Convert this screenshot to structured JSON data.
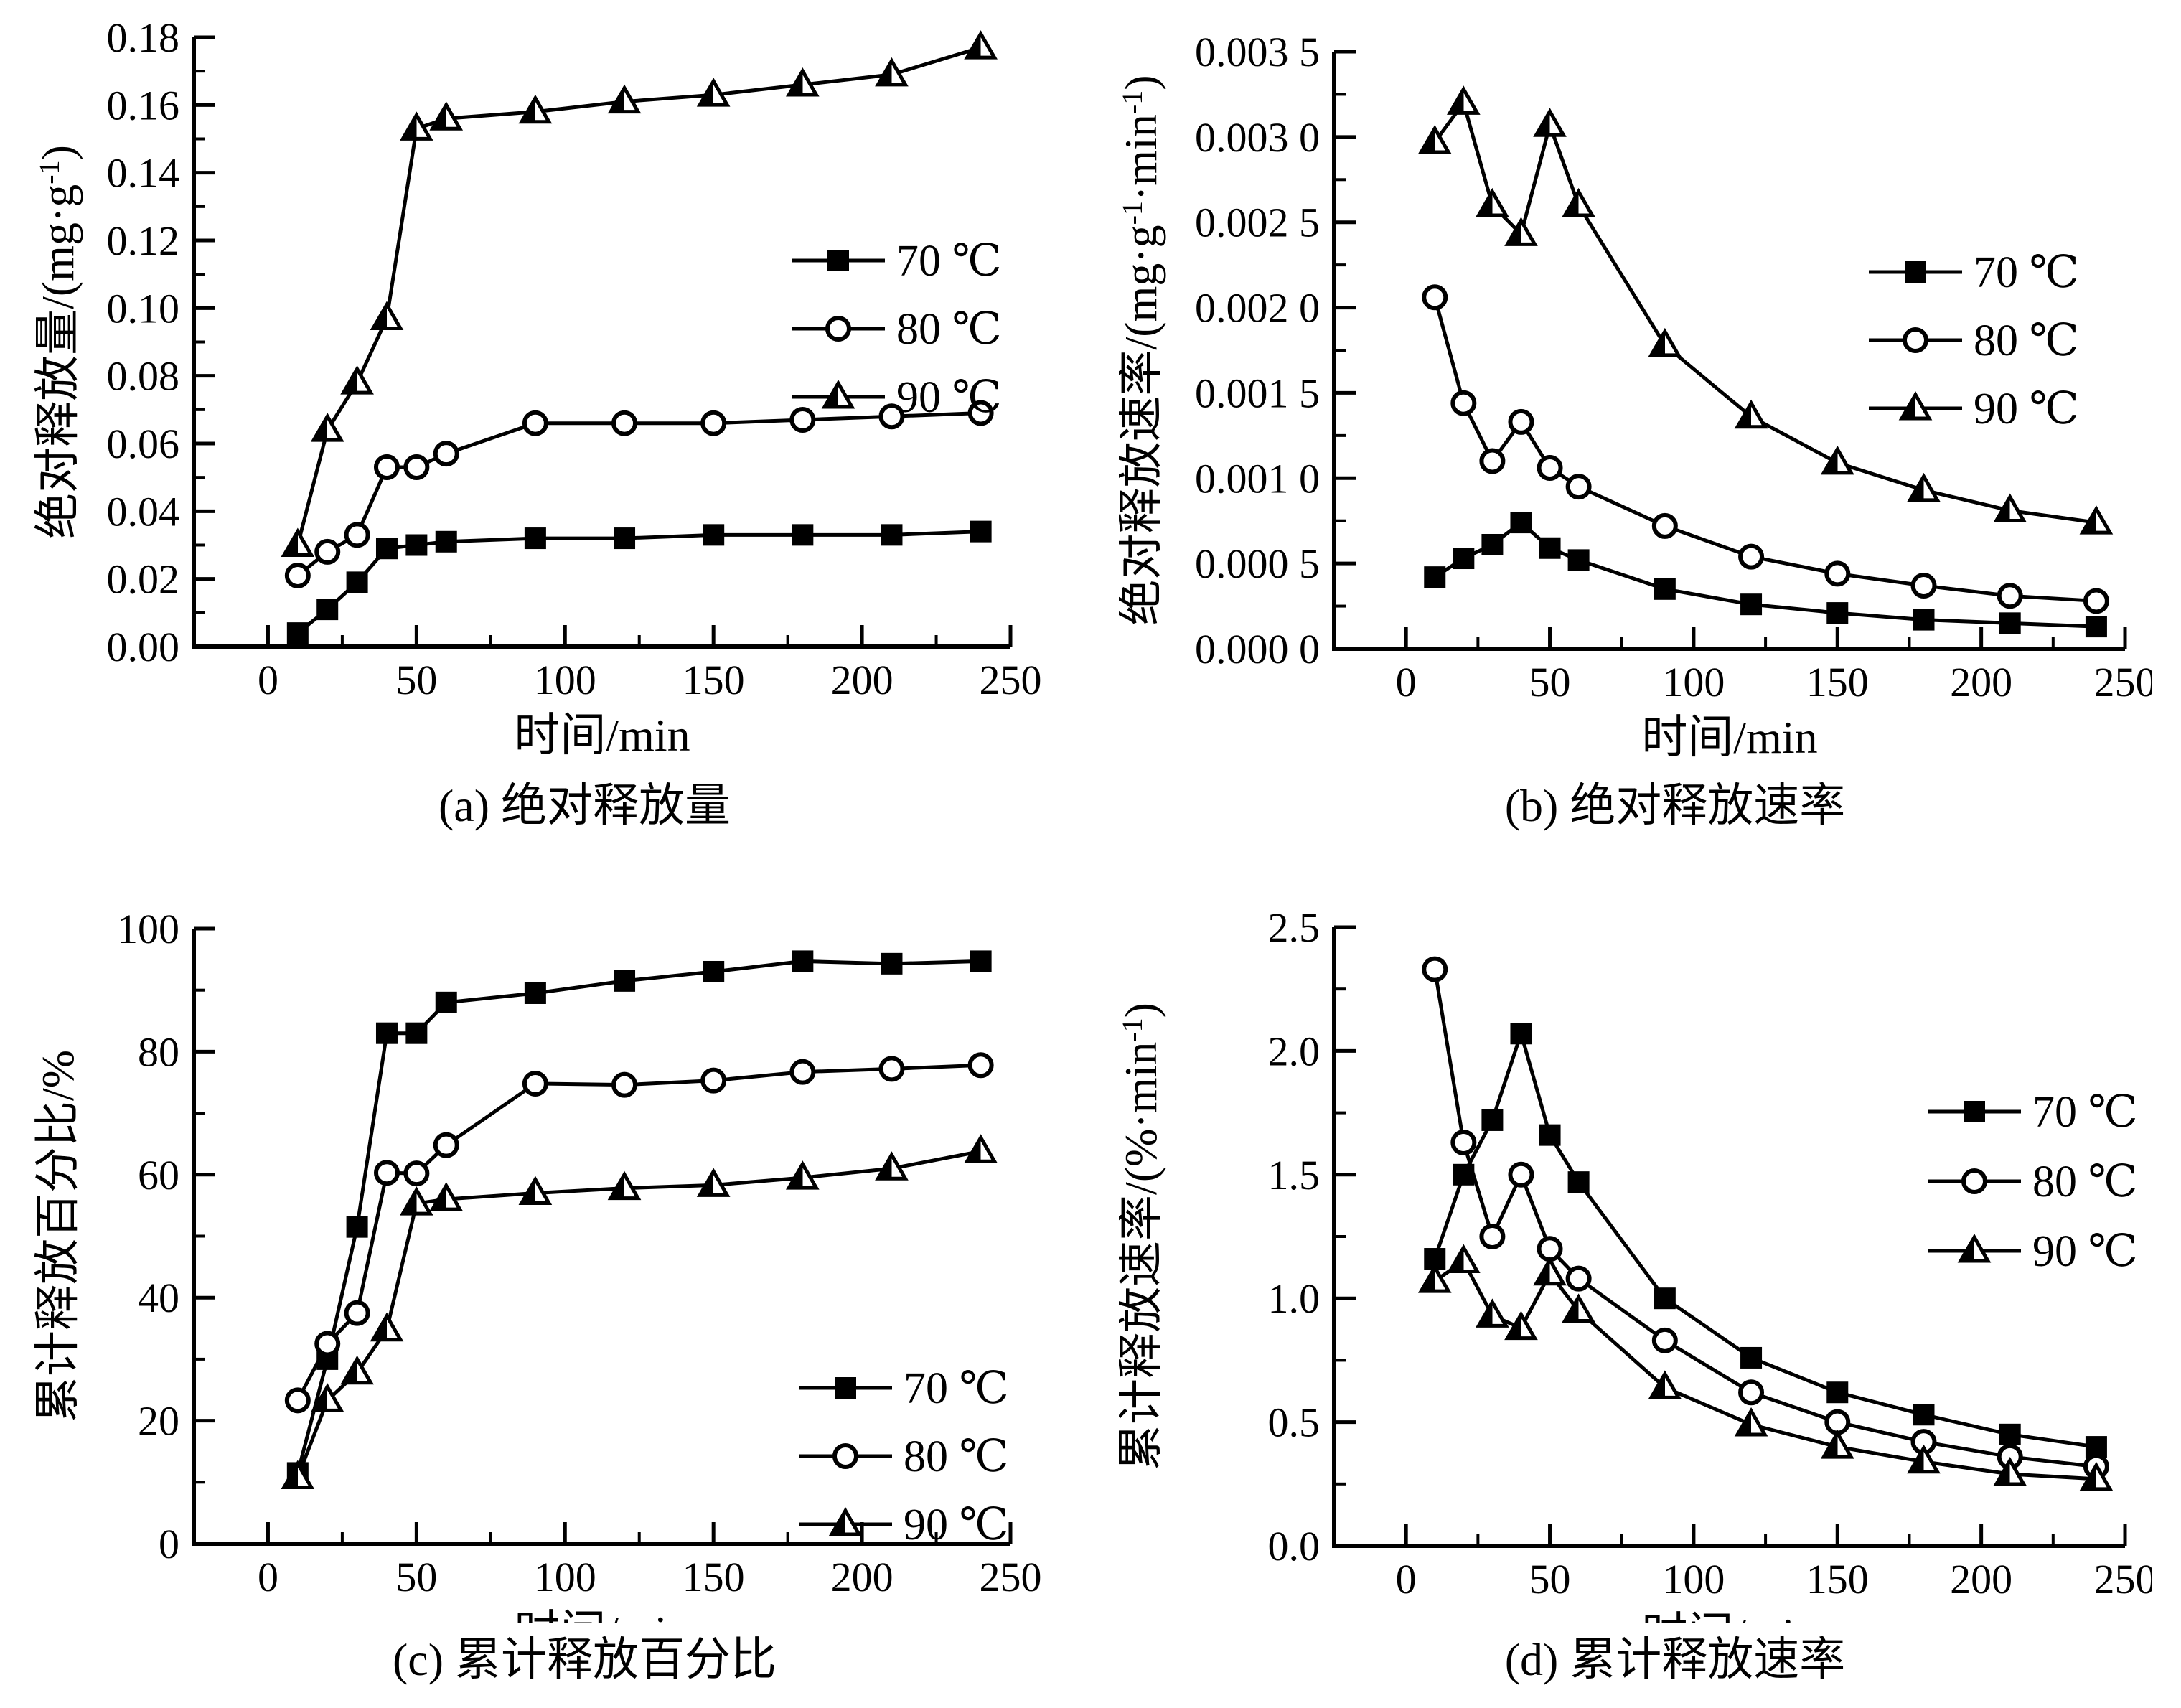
{
  "page": {
    "background": "#ffffff",
    "ink": "#000000"
  },
  "chart_data": [
    {
      "id": "a",
      "type": "line",
      "caption": "(a) 绝对释放量",
      "xlabel": "时间/min",
      "ylabel": "绝对释放量/(mg·g^-1^)",
      "xlim": [
        -25,
        250
      ],
      "ylim": [
        0,
        0.18
      ],
      "x_major_ticks": [
        0,
        50,
        100,
        150,
        200,
        250
      ],
      "x_minor_ticks": [
        25,
        75,
        125,
        175,
        225
      ],
      "y_major_ticks": [
        0,
        0.02,
        0.04,
        0.06,
        0.08,
        0.1,
        0.12,
        0.14,
        0.16,
        0.18
      ],
      "y_tick_labels": [
        "0.00",
        "0.02",
        "0.04",
        "0.06",
        "0.08",
        "0.10",
        "0.12",
        "0.14",
        "0.16",
        "0.18"
      ],
      "grid": "off",
      "legend_position": "inside-upper-right",
      "x": [
        10,
        20,
        30,
        40,
        50,
        60,
        90,
        120,
        150,
        180,
        210,
        240
      ],
      "series": [
        {
          "name": "70 ℃",
          "marker": "filled-square",
          "values": [
            0.004,
            0.011,
            0.019,
            0.029,
            0.03,
            0.031,
            0.032,
            0.032,
            0.033,
            0.033,
            0.033,
            0.034
          ]
        },
        {
          "name": "80 ℃",
          "marker": "open-circle",
          "values": [
            0.021,
            0.028,
            0.033,
            0.053,
            0.053,
            0.057,
            0.066,
            0.066,
            0.066,
            0.067,
            0.068,
            0.069
          ]
        },
        {
          "name": "90 ℃",
          "marker": "half-filled-triangle",
          "values": [
            0.03,
            0.064,
            0.078,
            0.097,
            0.153,
            0.156,
            0.158,
            0.161,
            0.163,
            0.166,
            0.169,
            0.177
          ]
        }
      ]
    },
    {
      "id": "b",
      "type": "line",
      "caption": "(b) 绝对释放速率",
      "xlabel": "时间/min",
      "ylabel": "绝对释放速率/(mg·g^-1^·min^-1^)",
      "xlim": [
        -25,
        250
      ],
      "ylim": [
        0,
        0.0035
      ],
      "x_major_ticks": [
        0,
        50,
        100,
        150,
        200,
        250
      ],
      "x_minor_ticks": [
        25,
        75,
        125,
        175,
        225
      ],
      "y_major_ticks": [
        0,
        0.0005,
        0.001,
        0.0015,
        0.002,
        0.0025,
        0.003,
        0.0035
      ],
      "y_tick_labels": [
        "0.000 0",
        "0.000 5",
        "0.001 0",
        "0.001 5",
        "0.002 0",
        "0.002 5",
        "0.003 0",
        "0.003 5"
      ],
      "grid": "off",
      "legend_position": "inside-upper-right",
      "x": [
        10,
        20,
        30,
        40,
        50,
        60,
        90,
        120,
        150,
        180,
        210,
        240
      ],
      "series": [
        {
          "name": "70 ℃",
          "marker": "filled-square",
          "values": [
            0.00042,
            0.00053,
            0.00061,
            0.00074,
            0.00059,
            0.00052,
            0.00035,
            0.00026,
            0.00021,
            0.00017,
            0.00015,
            0.00013
          ]
        },
        {
          "name": "80 ℃",
          "marker": "open-circle",
          "values": [
            0.00206,
            0.00144,
            0.0011,
            0.00133,
            0.00106,
            0.00095,
            0.00072,
            0.00054,
            0.00044,
            0.00037,
            0.00031,
            0.00028
          ]
        },
        {
          "name": "90 ℃",
          "marker": "half-filled-triangle",
          "values": [
            0.00297,
            0.0032,
            0.0026,
            0.00243,
            0.00307,
            0.0026,
            0.00178,
            0.00136,
            0.00109,
            0.00093,
            0.00081,
            0.00074
          ]
        }
      ]
    },
    {
      "id": "c",
      "type": "line",
      "caption": "(c) 累计释放百分比",
      "xlabel": "时间/min",
      "ylabel": "累计释放百分比/%",
      "xlim": [
        -25,
        250
      ],
      "ylim": [
        0,
        100
      ],
      "x_major_ticks": [
        0,
        50,
        100,
        150,
        200,
        250
      ],
      "x_minor_ticks": [
        25,
        75,
        125,
        175,
        225
      ],
      "y_major_ticks": [
        0,
        20,
        40,
        60,
        80,
        100
      ],
      "y_tick_labels": [
        "0",
        "20",
        "40",
        "60",
        "80",
        "100"
      ],
      "grid": "off",
      "legend_position": "inside-lower-right",
      "x": [
        10,
        20,
        30,
        40,
        50,
        60,
        90,
        120,
        150,
        180,
        210,
        240
      ],
      "series": [
        {
          "name": "70 ℃",
          "marker": "filled-square",
          "values": [
            11.5,
            30.0,
            51.5,
            83.0,
            83.0,
            88.0,
            89.5,
            91.5,
            93.0,
            94.7,
            94.3,
            94.7
          ]
        },
        {
          "name": "80 ℃",
          "marker": "open-circle",
          "values": [
            23.3,
            32.5,
            37.5,
            60.3,
            60.2,
            64.8,
            74.8,
            74.6,
            75.3,
            76.7,
            77.2,
            77.8
          ]
        },
        {
          "name": "90 ℃",
          "marker": "half-filled-triangle",
          "values": [
            10.8,
            23.3,
            27.8,
            34.8,
            55.3,
            56.0,
            57.0,
            57.8,
            58.3,
            59.5,
            61.0,
            63.8
          ]
        }
      ]
    },
    {
      "id": "d",
      "type": "line",
      "caption": "(d) 累计释放速率",
      "xlabel": "时间/min",
      "ylabel": "累计释放速率/(%·min^-1^)",
      "xlim": [
        -25,
        250
      ],
      "ylim": [
        0,
        2.5
      ],
      "x_major_ticks": [
        0,
        50,
        100,
        150,
        200,
        250
      ],
      "x_minor_ticks": [
        25,
        75,
        125,
        175,
        225
      ],
      "y_major_ticks": [
        0,
        0.5,
        1.0,
        1.5,
        2.0,
        2.5
      ],
      "y_tick_labels": [
        "0.0",
        "0.5",
        "1.0",
        "1.5",
        "2.0",
        "2.5"
      ],
      "grid": "off",
      "legend_position": "inside-upper-right",
      "x": [
        10,
        20,
        30,
        40,
        50,
        60,
        90,
        120,
        150,
        180,
        210,
        240
      ],
      "series": [
        {
          "name": "70 ℃",
          "marker": "filled-square",
          "values": [
            1.16,
            1.5,
            1.72,
            2.07,
            1.66,
            1.47,
            1.0,
            0.76,
            0.62,
            0.53,
            0.45,
            0.4
          ]
        },
        {
          "name": "80 ℃",
          "marker": "open-circle",
          "values": [
            2.33,
            1.63,
            1.25,
            1.5,
            1.2,
            1.08,
            0.83,
            0.62,
            0.5,
            0.42,
            0.36,
            0.32
          ]
        },
        {
          "name": "90 ℃",
          "marker": "half-filled-triangle",
          "values": [
            1.07,
            1.15,
            0.93,
            0.88,
            1.1,
            0.95,
            0.64,
            0.49,
            0.4,
            0.34,
            0.29,
            0.27
          ]
        }
      ]
    }
  ]
}
